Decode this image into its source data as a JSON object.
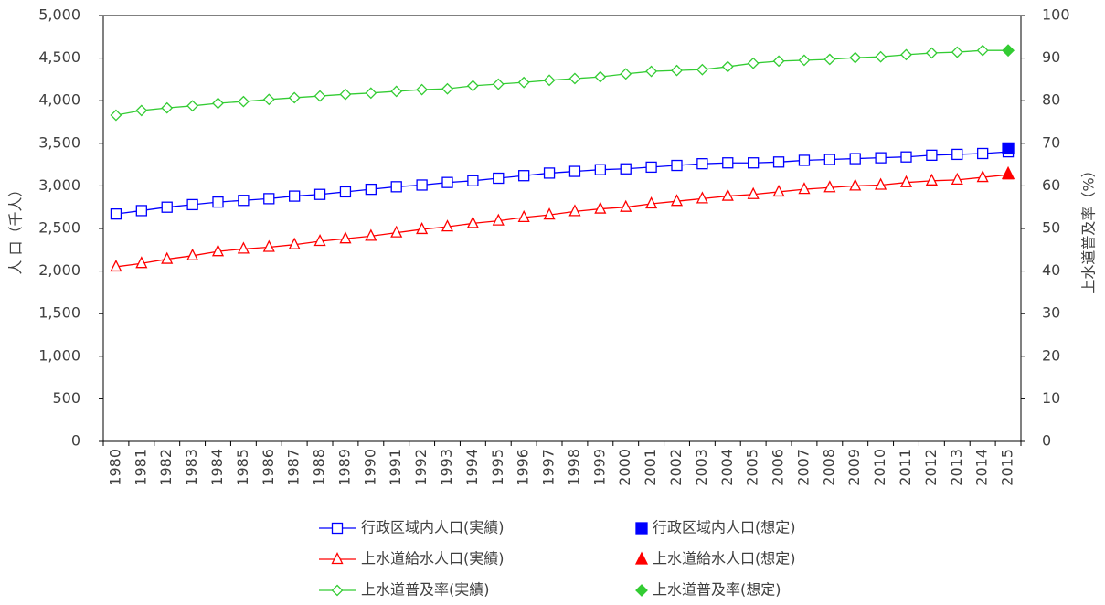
{
  "chart_data": {
    "type": "line",
    "ylabel": "人 口（千人）",
    "y2label": "上水道普及率（%）",
    "categories": [
      "1980",
      "1981",
      "1982",
      "1983",
      "1984",
      "1985",
      "1986",
      "1987",
      "1988",
      "1989",
      "1990",
      "1991",
      "1992",
      "1993",
      "1994",
      "1995",
      "1996",
      "1997",
      "1998",
      "1999",
      "2000",
      "2001",
      "2002",
      "2003",
      "2004",
      "2005",
      "2006",
      "2007",
      "2008",
      "2009",
      "2010",
      "2011",
      "2012",
      "2013",
      "2014",
      "2015"
    ],
    "ylim": [
      0,
      5000
    ],
    "yticks": [
      0,
      500,
      {
        "value": 1000,
        "label": "1,000"
      },
      {
        "value": 1500,
        "label": "1,500"
      },
      {
        "value": 2000,
        "label": "2,000"
      },
      {
        "value": 2500,
        "label": "2,500"
      },
      {
        "value": 3000,
        "label": "3,000"
      },
      {
        "value": 3500,
        "label": "3,500"
      },
      {
        "value": 4000,
        "label": "4,000"
      },
      {
        "value": 4500,
        "label": "4,500"
      },
      {
        "value": 5000,
        "label": "5,000"
      }
    ],
    "y2lim": [
      0,
      100
    ],
    "y2ticks": [
      0,
      10,
      20,
      30,
      40,
      50,
      60,
      70,
      80,
      90,
      100
    ],
    "series": [
      {
        "name": "行政区域内人口(実績)",
        "color": "#0000ff",
        "marker": "square",
        "filled": false,
        "line": true,
        "values": [
          2670,
          2710,
          2750,
          2780,
          2810,
          2830,
          2850,
          2880,
          2900,
          2930,
          2960,
          2990,
          3010,
          3040,
          3060,
          3090,
          3120,
          3150,
          3170,
          3190,
          3200,
          3220,
          3240,
          3260,
          3270,
          3270,
          3280,
          3300,
          3310,
          3320,
          3330,
          3340,
          3360,
          3370,
          3380,
          3400
        ]
      },
      {
        "name": "行政区域内人口(想定)",
        "color": "#0000ff",
        "marker": "square",
        "filled": true,
        "line": false,
        "values": [
          null,
          null,
          null,
          null,
          null,
          null,
          null,
          null,
          null,
          null,
          null,
          null,
          null,
          null,
          null,
          null,
          null,
          null,
          null,
          null,
          null,
          null,
          null,
          null,
          null,
          null,
          null,
          null,
          null,
          null,
          null,
          null,
          null,
          null,
          null,
          3440
        ]
      },
      {
        "name": "上水道給水人口(実績)",
        "color": "#ff0000",
        "marker": "triangle",
        "filled": false,
        "line": true,
        "values": [
          2050,
          2090,
          2140,
          2180,
          2230,
          2260,
          2280,
          2310,
          2350,
          2380,
          2410,
          2450,
          2490,
          2520,
          2560,
          2590,
          2630,
          2660,
          2700,
          2730,
          2750,
          2790,
          2820,
          2850,
          2880,
          2900,
          2930,
          2960,
          2980,
          3000,
          3010,
          3040,
          3060,
          3070,
          3100,
          3130
        ]
      },
      {
        "name": "上水道給水人口(想定)",
        "color": "#ff0000",
        "marker": "triangle",
        "filled": true,
        "line": false,
        "values": [
          null,
          null,
          null,
          null,
          null,
          null,
          null,
          null,
          null,
          null,
          null,
          null,
          null,
          null,
          null,
          null,
          null,
          null,
          null,
          null,
          null,
          null,
          null,
          null,
          null,
          null,
          null,
          null,
          null,
          null,
          null,
          null,
          null,
          null,
          null,
          3140
        ]
      },
      {
        "name": "上水道普及率(実績)",
        "color": "#33cc33",
        "marker": "diamond",
        "filled": false,
        "line": true,
        "axis": "y2",
        "values": [
          76.6,
          77.7,
          78.3,
          78.8,
          79.4,
          79.8,
          80.3,
          80.7,
          81.1,
          81.5,
          81.8,
          82.2,
          82.6,
          82.8,
          83.5,
          83.9,
          84.3,
          84.8,
          85.2,
          85.6,
          86.3,
          86.9,
          87.1,
          87.3,
          88.0,
          88.8,
          89.3,
          89.5,
          89.7,
          90.1,
          90.3,
          90.8,
          91.2,
          91.4,
          91.8,
          91.8
        ]
      },
      {
        "name": "上水道普及率(想定)",
        "color": "#33cc33",
        "marker": "diamond",
        "filled": true,
        "line": false,
        "axis": "y2",
        "values": [
          null,
          null,
          null,
          null,
          null,
          null,
          null,
          null,
          null,
          null,
          null,
          null,
          null,
          null,
          null,
          null,
          null,
          null,
          null,
          null,
          null,
          null,
          null,
          null,
          null,
          null,
          null,
          null,
          null,
          null,
          null,
          null,
          null,
          null,
          null,
          91.8
        ]
      }
    ]
  }
}
